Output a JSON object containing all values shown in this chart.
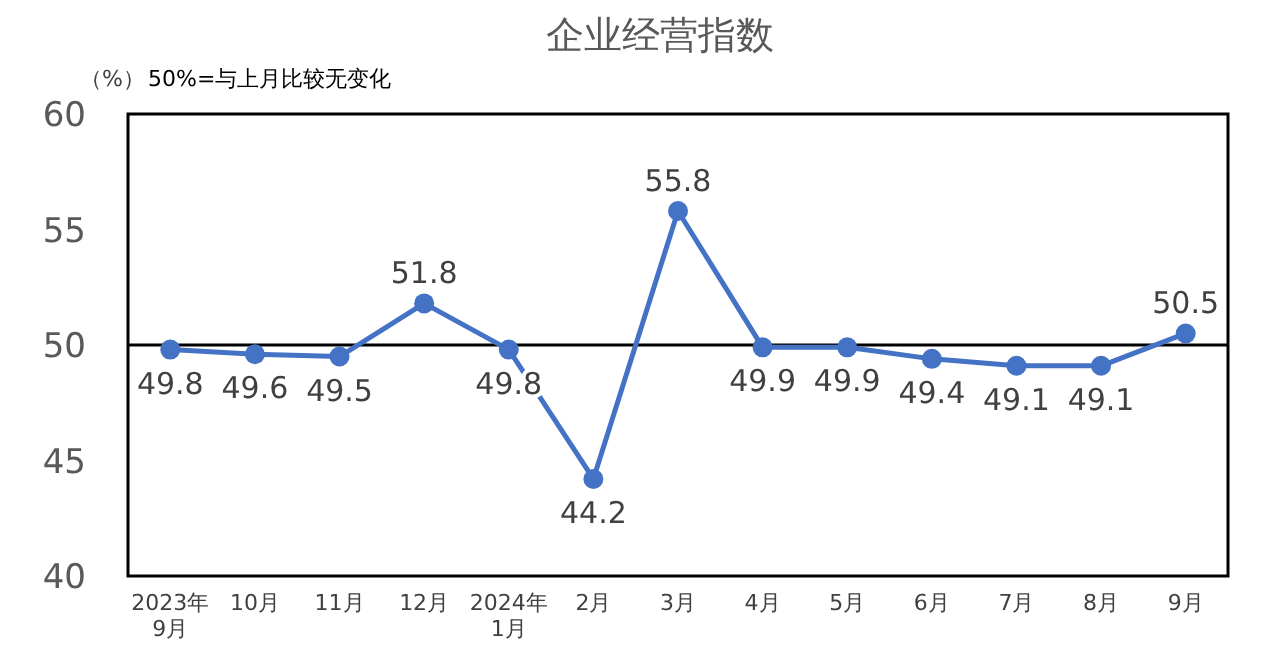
{
  "chart_data": {
    "type": "line",
    "title": "企业经营指数",
    "ylabel": "（%）",
    "annotations": [
      "50%=与上月比较无变化"
    ],
    "categories": [
      "2023年\n9月",
      "10月",
      "11月",
      "12月",
      "2024年\n1月",
      "2月",
      "3月",
      "4月",
      "5月",
      "6月",
      "7月",
      "8月",
      "9月"
    ],
    "series": [
      {
        "color": "#4472c4",
        "values": [
          49.8,
          49.6,
          49.5,
          51.8,
          49.8,
          44.2,
          55.8,
          49.9,
          49.9,
          49.4,
          49.1,
          49.1,
          50.5
        ]
      }
    ],
    "ylim": [
      40,
      60
    ],
    "yticks": [
      40,
      45,
      50,
      55,
      60
    ],
    "ref_lines": [
      {
        "axis": "y",
        "value": 50,
        "color": "#000000"
      }
    ],
    "marker": "circle",
    "line_style": "solid",
    "data_labels": true
  }
}
